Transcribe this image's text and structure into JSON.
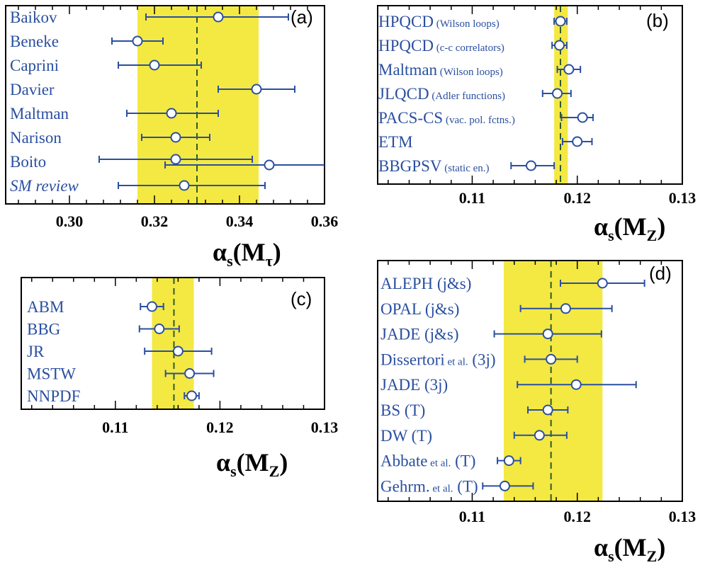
{
  "figure": {
    "colors": {
      "band": "#f4e842",
      "marker": "#2a4fa0",
      "text": "#2a4fa0",
      "frame": "#000000",
      "dashed_line": "#2e5a2e"
    }
  },
  "chart_data": [
    {
      "panel": "(a)",
      "type": "scatter",
      "xlim": [
        0.285,
        0.36
      ],
      "xticks": [
        "0.30",
        "0.32",
        "0.34",
        "0.36"
      ],
      "xtick_values": [
        0.3,
        0.32,
        0.34,
        0.36
      ],
      "axis_symbol": "α",
      "axis_sub": "s",
      "axis_arg": "M",
      "axis_arg_sub": "τ",
      "band": [
        0.316,
        0.3445
      ],
      "central_line": 0.33,
      "entries": [
        {
          "label": "Baikov",
          "note": "",
          "italic": false,
          "points": [
            {
              "value": 0.335,
              "err_lo": 0.318,
              "err_hi": 0.3515
            }
          ]
        },
        {
          "label": "Beneke",
          "note": "",
          "italic": false,
          "points": [
            {
              "value": 0.316,
              "err_lo": 0.31,
              "err_hi": 0.322
            }
          ]
        },
        {
          "label": "Caprini",
          "note": "",
          "italic": false,
          "points": [
            {
              "value": 0.32,
              "err_lo": 0.3115,
              "err_hi": 0.331
            }
          ]
        },
        {
          "label": "Davier",
          "note": "",
          "italic": false,
          "points": [
            {
              "value": 0.344,
              "err_lo": 0.335,
              "err_hi": 0.353
            }
          ]
        },
        {
          "label": "Maltman",
          "note": "",
          "italic": false,
          "points": [
            {
              "value": 0.324,
              "err_lo": 0.3135,
              "err_hi": 0.335
            }
          ]
        },
        {
          "label": "Narison",
          "note": "",
          "italic": false,
          "points": [
            {
              "value": 0.325,
              "err_lo": 0.317,
              "err_hi": 0.333
            }
          ]
        },
        {
          "label": "Boito",
          "note": "",
          "italic": false,
          "points": [
            {
              "value": 0.325,
              "err_lo": 0.307,
              "err_hi": 0.343
            },
            {
              "value": 0.347,
              "err_lo": 0.3225,
              "err_hi": 0.361
            }
          ]
        },
        {
          "label": "SM review",
          "note": "",
          "italic": true,
          "points": [
            {
              "value": 0.327,
              "err_lo": 0.3115,
              "err_hi": 0.346
            }
          ]
        }
      ]
    },
    {
      "panel": "(b)",
      "type": "scatter",
      "xlim": [
        0.101,
        0.13
      ],
      "xticks": [
        "0.11",
        "0.12",
        "0.13"
      ],
      "xtick_values": [
        0.11,
        0.12,
        0.13
      ],
      "axis_symbol": "α",
      "axis_sub": "s",
      "axis_arg": "M",
      "axis_arg_sub": "Z",
      "band": [
        0.1178,
        0.1191
      ],
      "central_line": 0.1184,
      "entries": [
        {
          "label": "HPQCD",
          "note": "(Wilson loops)",
          "italic": false,
          "points": [
            {
              "value": 0.1184,
              "err_lo": 0.1178,
              "err_hi": 0.119
            }
          ]
        },
        {
          "label": "HPQCD",
          "note": "(c-c correlators)",
          "italic": false,
          "points": [
            {
              "value": 0.1183,
              "err_lo": 0.1176,
              "err_hi": 0.119
            }
          ]
        },
        {
          "label": "Maltman",
          "note": "(Wilson loops)",
          "italic": false,
          "points": [
            {
              "value": 0.1192,
              "err_lo": 0.1181,
              "err_hi": 0.1203
            }
          ]
        },
        {
          "label": "JLQCD",
          "note": "(Adler functions)",
          "italic": false,
          "points": [
            {
              "value": 0.1181,
              "err_lo": 0.1167,
              "err_hi": 0.1194
            }
          ]
        },
        {
          "label": "PACS-CS",
          "note": "(vac. pol. fctns.)",
          "italic": false,
          "points": [
            {
              "value": 0.1205,
              "err_lo": 0.1185,
              "err_hi": 0.1215
            }
          ]
        },
        {
          "label": "ETM",
          "note": "",
          "italic": false,
          "points": [
            {
              "value": 0.12,
              "err_lo": 0.1186,
              "err_hi": 0.1214
            }
          ]
        },
        {
          "label": "BBGPSV",
          "note": "(static en.)",
          "italic": false,
          "points": [
            {
              "value": 0.1156,
              "err_lo": 0.1137,
              "err_hi": 0.1178
            }
          ]
        }
      ]
    },
    {
      "panel": "(c)",
      "type": "scatter",
      "xlim": [
        0.101,
        0.13
      ],
      "xticks": [
        "0.11",
        "0.12",
        "0.13"
      ],
      "xtick_values": [
        0.11,
        0.12,
        0.13
      ],
      "axis_symbol": "α",
      "axis_sub": "s",
      "axis_arg": "M",
      "axis_arg_sub": "Z",
      "band": [
        0.1135,
        0.1175
      ],
      "central_line": 0.1156,
      "entries": [
        {
          "label": "ABM",
          "note": "",
          "italic": false,
          "points": [
            {
              "value": 0.1135,
              "err_lo": 0.1124,
              "err_hi": 0.1146
            }
          ]
        },
        {
          "label": "BBG",
          "note": "",
          "italic": false,
          "points": [
            {
              "value": 0.1142,
              "err_lo": 0.1123,
              "err_hi": 0.1161
            }
          ]
        },
        {
          "label": "JR",
          "note": "",
          "italic": false,
          "points": [
            {
              "value": 0.116,
              "err_lo": 0.1128,
              "err_hi": 0.1192
            }
          ]
        },
        {
          "label": "MSTW",
          "note": "",
          "italic": false,
          "points": [
            {
              "value": 0.1171,
              "err_lo": 0.1148,
              "err_hi": 0.1194
            }
          ]
        },
        {
          "label": "NNPDF",
          "note": "",
          "italic": false,
          "points": [
            {
              "value": 0.1173,
              "err_lo": 0.1166,
              "err_hi": 0.118
            }
          ]
        }
      ]
    },
    {
      "panel": "(d)",
      "type": "scatter",
      "xlim": [
        0.101,
        0.13
      ],
      "xticks": [
        "0.11",
        "0.12",
        "0.13"
      ],
      "xtick_values": [
        0.11,
        0.12,
        0.13
      ],
      "axis_symbol": "α",
      "axis_sub": "s",
      "axis_arg": "M",
      "axis_arg_sub": "Z",
      "band": [
        0.113,
        0.1224
      ],
      "central_line": 0.1175,
      "entries": [
        {
          "label": "ALEPH (j&s)",
          "note": "",
          "italic": false,
          "points": [
            {
              "value": 0.1224,
              "err_lo": 0.1184,
              "err_hi": 0.1264
            }
          ]
        },
        {
          "label": "OPAL  (j&s)",
          "note": "",
          "italic": false,
          "points": [
            {
              "value": 0.1189,
              "err_lo": 0.1146,
              "err_hi": 0.1233
            }
          ]
        },
        {
          "label": "JADE  (j&s)",
          "note": "",
          "italic": false,
          "points": [
            {
              "value": 0.1172,
              "err_lo": 0.1121,
              "err_hi": 0.1223
            }
          ]
        },
        {
          "label": "Dissertori",
          "note": "et al.",
          "tail": "(3j)",
          "italic": false,
          "points": [
            {
              "value": 0.1175,
              "err_lo": 0.115,
              "err_hi": 0.12
            }
          ]
        },
        {
          "label": "JADE (3j)",
          "note": "",
          "italic": false,
          "points": [
            {
              "value": 0.1199,
              "err_lo": 0.1143,
              "err_hi": 0.1256
            }
          ]
        },
        {
          "label": "BS (T)",
          "note": "",
          "italic": false,
          "points": [
            {
              "value": 0.1172,
              "err_lo": 0.1153,
              "err_hi": 0.1191
            }
          ]
        },
        {
          "label": "DW (T)",
          "note": "",
          "italic": false,
          "points": [
            {
              "value": 0.1164,
              "err_lo": 0.114,
              "err_hi": 0.119
            }
          ]
        },
        {
          "label": "Abbate",
          "note": "et al.",
          "tail": "(T)",
          "italic": false,
          "points": [
            {
              "value": 0.1135,
              "err_lo": 0.1124,
              "err_hi": 0.1146
            }
          ]
        },
        {
          "label": "Gehrm.",
          "note": "et al.",
          "tail": "(T)",
          "italic": false,
          "points": [
            {
              "value": 0.1131,
              "err_lo": 0.111,
              "err_hi": 0.1158
            }
          ]
        }
      ]
    }
  ]
}
